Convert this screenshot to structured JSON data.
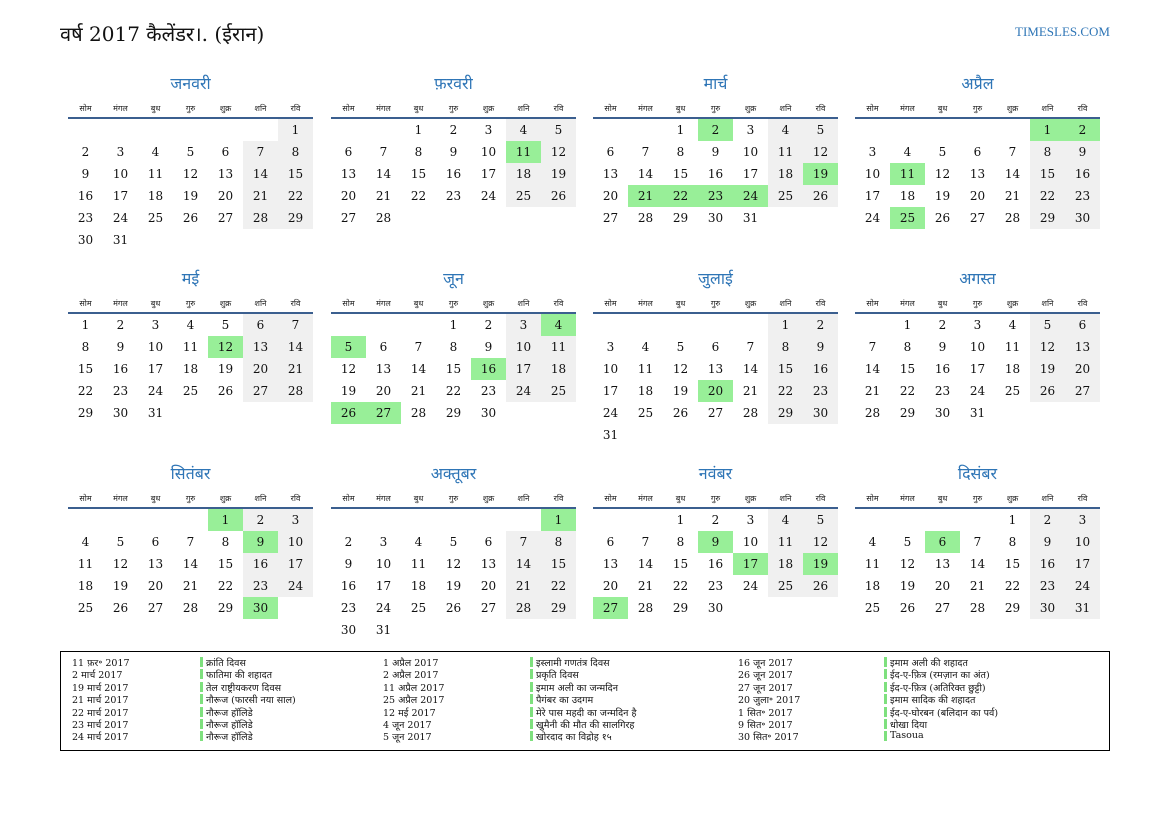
{
  "header": {
    "title": "वर्ष 2017 कैलेंडर।. (ईरान)",
    "site": "TIMESLES.COM"
  },
  "weekdays": [
    "सोम",
    "मंगल",
    "बुध",
    "गुरु",
    "शुक्र",
    "शनि",
    "रवि"
  ],
  "months": [
    {
      "name": "जनवरी",
      "weeks": [
        [
          null,
          null,
          null,
          null,
          null,
          null,
          1
        ],
        [
          2,
          3,
          4,
          5,
          6,
          7,
          8
        ],
        [
          9,
          10,
          11,
          12,
          13,
          14,
          15
        ],
        [
          16,
          17,
          18,
          19,
          20,
          21,
          22
        ],
        [
          23,
          24,
          25,
          26,
          27,
          28,
          29
        ],
        [
          30,
          31,
          null,
          null,
          null,
          null,
          null
        ]
      ],
      "holidays": []
    },
    {
      "name": "फ़रवरी",
      "weeks": [
        [
          null,
          null,
          1,
          2,
          3,
          4,
          5
        ],
        [
          6,
          7,
          8,
          9,
          10,
          11,
          12
        ],
        [
          13,
          14,
          15,
          16,
          17,
          18,
          19
        ],
        [
          20,
          21,
          22,
          23,
          24,
          25,
          26
        ],
        [
          27,
          28,
          null,
          null,
          null,
          null,
          null
        ]
      ],
      "holidays": [
        11
      ]
    },
    {
      "name": "मार्च",
      "weeks": [
        [
          null,
          null,
          1,
          2,
          3,
          4,
          5
        ],
        [
          6,
          7,
          8,
          9,
          10,
          11,
          12
        ],
        [
          13,
          14,
          15,
          16,
          17,
          18,
          19
        ],
        [
          20,
          21,
          22,
          23,
          24,
          25,
          26
        ],
        [
          27,
          28,
          29,
          30,
          31,
          null,
          null
        ]
      ],
      "holidays": [
        2,
        19,
        21,
        22,
        23,
        24
      ]
    },
    {
      "name": "अप्रैल",
      "weeks": [
        [
          null,
          null,
          null,
          null,
          null,
          1,
          2
        ],
        [
          3,
          4,
          5,
          6,
          7,
          8,
          9
        ],
        [
          10,
          11,
          12,
          13,
          14,
          15,
          16
        ],
        [
          17,
          18,
          19,
          20,
          21,
          22,
          23
        ],
        [
          24,
          25,
          26,
          27,
          28,
          29,
          30
        ]
      ],
      "holidays": [
        1,
        2,
        11,
        25
      ]
    },
    {
      "name": "मई",
      "weeks": [
        [
          1,
          2,
          3,
          4,
          5,
          6,
          7
        ],
        [
          8,
          9,
          10,
          11,
          12,
          13,
          14
        ],
        [
          15,
          16,
          17,
          18,
          19,
          20,
          21
        ],
        [
          22,
          23,
          24,
          25,
          26,
          27,
          28
        ],
        [
          29,
          30,
          31,
          null,
          null,
          null,
          null
        ]
      ],
      "holidays": [
        12
      ]
    },
    {
      "name": "जून",
      "weeks": [
        [
          null,
          null,
          null,
          1,
          2,
          3,
          4
        ],
        [
          5,
          6,
          7,
          8,
          9,
          10,
          11
        ],
        [
          12,
          13,
          14,
          15,
          16,
          17,
          18
        ],
        [
          19,
          20,
          21,
          22,
          23,
          24,
          25
        ],
        [
          26,
          27,
          28,
          29,
          30,
          null,
          null
        ]
      ],
      "holidays": [
        4,
        5,
        16,
        26,
        27
      ]
    },
    {
      "name": "जुलाई",
      "weeks": [
        [
          null,
          null,
          null,
          null,
          null,
          1,
          2
        ],
        [
          3,
          4,
          5,
          6,
          7,
          8,
          9
        ],
        [
          10,
          11,
          12,
          13,
          14,
          15,
          16
        ],
        [
          17,
          18,
          19,
          20,
          21,
          22,
          23
        ],
        [
          24,
          25,
          26,
          27,
          28,
          29,
          30
        ],
        [
          31,
          null,
          null,
          null,
          null,
          null,
          null
        ]
      ],
      "holidays": [
        20
      ]
    },
    {
      "name": "अगस्त",
      "weeks": [
        [
          null,
          1,
          2,
          3,
          4,
          5,
          6
        ],
        [
          7,
          8,
          9,
          10,
          11,
          12,
          13
        ],
        [
          14,
          15,
          16,
          17,
          18,
          19,
          20
        ],
        [
          21,
          22,
          23,
          24,
          25,
          26,
          27
        ],
        [
          28,
          29,
          30,
          31,
          null,
          null,
          null
        ]
      ],
      "holidays": []
    },
    {
      "name": "सितंबर",
      "weeks": [
        [
          null,
          null,
          null,
          null,
          1,
          2,
          3
        ],
        [
          4,
          5,
          6,
          7,
          8,
          9,
          10
        ],
        [
          11,
          12,
          13,
          14,
          15,
          16,
          17
        ],
        [
          18,
          19,
          20,
          21,
          22,
          23,
          24
        ],
        [
          25,
          26,
          27,
          28,
          29,
          30,
          null
        ]
      ],
      "holidays": [
        1,
        9,
        30
      ]
    },
    {
      "name": "अक्तूबर",
      "weeks": [
        [
          null,
          null,
          null,
          null,
          null,
          null,
          1
        ],
        [
          2,
          3,
          4,
          5,
          6,
          7,
          8
        ],
        [
          9,
          10,
          11,
          12,
          13,
          14,
          15
        ],
        [
          16,
          17,
          18,
          19,
          20,
          21,
          22
        ],
        [
          23,
          24,
          25,
          26,
          27,
          28,
          29
        ],
        [
          30,
          31,
          null,
          null,
          null,
          null,
          null
        ]
      ],
      "holidays": [
        1
      ]
    },
    {
      "name": "नवंबर",
      "weeks": [
        [
          null,
          null,
          1,
          2,
          3,
          4,
          5
        ],
        [
          6,
          7,
          8,
          9,
          10,
          11,
          12
        ],
        [
          13,
          14,
          15,
          16,
          17,
          18,
          19
        ],
        [
          20,
          21,
          22,
          23,
          24,
          25,
          26
        ],
        [
          27,
          28,
          29,
          30,
          null,
          null,
          null
        ]
      ],
      "holidays": [
        9,
        17,
        19,
        27
      ]
    },
    {
      "name": "दिसंबर",
      "weeks": [
        [
          null,
          null,
          null,
          null,
          1,
          2,
          3
        ],
        [
          4,
          5,
          6,
          7,
          8,
          9,
          10
        ],
        [
          11,
          12,
          13,
          14,
          15,
          16,
          17
        ],
        [
          18,
          19,
          20,
          21,
          22,
          23,
          24
        ],
        [
          25,
          26,
          27,
          28,
          29,
          30,
          31
        ]
      ],
      "holidays": [
        6
      ]
    }
  ],
  "legend": {
    "columns": [
      [
        {
          "date": "11 फ़र॰ 2017",
          "name": "क्रांति दिवस"
        },
        {
          "date": "2 मार्च 2017",
          "name": "फातिमा की शहादत"
        },
        {
          "date": "19 मार्च 2017",
          "name": "तेल राष्ट्रीयकरण दिवस"
        },
        {
          "date": "21 मार्च 2017",
          "name": "नौरूज (फारसी नया साल)"
        },
        {
          "date": "22 मार्च 2017",
          "name": "नौरूज हॉलिडे"
        },
        {
          "date": "23 मार्च 2017",
          "name": "नौरूज हॉलिडे"
        },
        {
          "date": "24 मार्च 2017",
          "name": "नौरूज हॉलिडे"
        }
      ],
      [
        {
          "date": "1 अप्रैल 2017",
          "name": "इस्लामी गणतंत्र दिवस"
        },
        {
          "date": "2 अप्रैल 2017",
          "name": "प्रकृति दिवस"
        },
        {
          "date": "11 अप्रैल 2017",
          "name": "इमाम अली का जन्मदिन"
        },
        {
          "date": "25 अप्रैल 2017",
          "name": "पैगंबर का उदगम"
        },
        {
          "date": "12 मई 2017",
          "name": "मेरे पास महदी का जन्मदिन है"
        },
        {
          "date": "4 जून 2017",
          "name": "खुमैनी की मौत की सालगिरह"
        },
        {
          "date": "5 जून 2017",
          "name": "खोरदाद का विद्रोह १५"
        }
      ],
      [
        {
          "date": "16 जून 2017",
          "name": "इमाम अली की शहादत"
        },
        {
          "date": "26 जून 2017",
          "name": "ईद-ए-फ़ित्र (रमज़ान का अंत)"
        },
        {
          "date": "27 जून 2017",
          "name": "ईद-ए-फ़ित्र (अतिरिक्त छुट्टी)"
        },
        {
          "date": "20 जुला॰ 2017",
          "name": "इमाम सादिक की शहादत"
        },
        {
          "date": "1 सित॰ 2017",
          "name": "ईद-ए-घोरबन (बलिदान का पर्व)"
        },
        {
          "date": "9 सित॰ 2017",
          "name": "धोखा दिया"
        },
        {
          "date": "30 सित॰ 2017",
          "name": "Tasoua"
        }
      ]
    ]
  }
}
